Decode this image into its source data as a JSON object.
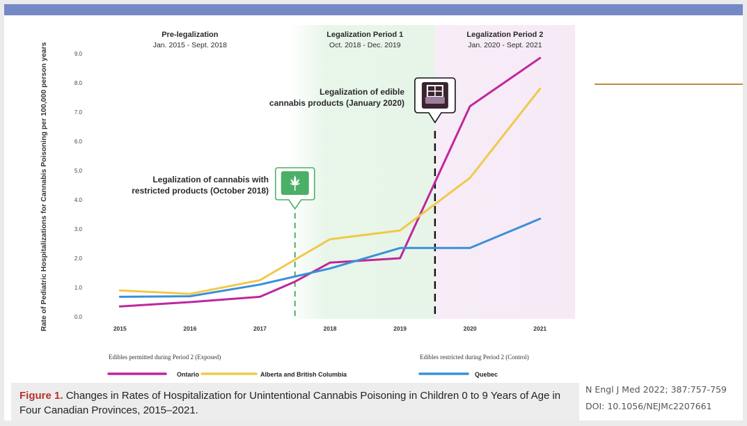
{
  "colors": {
    "ontario": "#c0269c",
    "alberta_bc": "#f0c94a",
    "quebec": "#3a8fd9",
    "period1_bg": "#e9f7ea",
    "period2_bg": "#f6ebf6",
    "green_marker": "#4caf66",
    "dark_marker": "#3a2430"
  },
  "icons": {
    "leaf": "cannabis-leaf-icon",
    "edible": "edible-package-icon"
  },
  "chart_data": {
    "type": "line",
    "ylabel": "Rate of Pediatric Hospitalizations for Cannabis Poisoning per 100,000 person years",
    "xlabel": "",
    "ylim": [
      0,
      9
    ],
    "yticks": [
      "0.0",
      "1.0",
      "2.0",
      "3.0",
      "4.0",
      "5.0",
      "6.0",
      "7.0",
      "8.0",
      "9.0"
    ],
    "x": [
      2015,
      2016,
      2017,
      2018,
      2019,
      2020,
      2021
    ],
    "xtick_labels": [
      "2015",
      "2016",
      "2017",
      "2018",
      "2019",
      "2020",
      "2021"
    ],
    "grid": false,
    "series": [
      {
        "name": "Ontario",
        "key": "ontario",
        "points": [
          [
            2015,
            0.35
          ],
          [
            2016,
            0.5
          ],
          [
            2017,
            0.68
          ],
          [
            2017.5,
            1.2
          ],
          [
            2018,
            1.85
          ],
          [
            2019,
            2.0
          ],
          [
            2020,
            7.2
          ],
          [
            2021,
            8.85
          ]
        ]
      },
      {
        "name": "Alberta and British Columbia",
        "key": "alberta_bc",
        "points": [
          [
            2015,
            0.9
          ],
          [
            2016,
            0.78
          ],
          [
            2017,
            1.25
          ],
          [
            2017.5,
            1.95
          ],
          [
            2018,
            2.65
          ],
          [
            2019,
            2.95
          ],
          [
            2020,
            4.75
          ],
          [
            2021,
            7.8
          ]
        ]
      },
      {
        "name": "Quebec",
        "key": "quebec",
        "points": [
          [
            2015,
            0.68
          ],
          [
            2016,
            0.7
          ],
          [
            2017,
            1.1
          ],
          [
            2018,
            1.65
          ],
          [
            2019,
            2.35
          ],
          [
            2020,
            2.35
          ],
          [
            2021,
            3.35
          ]
        ]
      }
    ],
    "periods": [
      {
        "name": "Pre-legalization",
        "dates": "Jan. 2015 - Sept. 2018",
        "start": 2014.5,
        "end": 2017.5
      },
      {
        "name": "Legalization Period 1",
        "dates": "Oct. 2018 - Dec. 2019",
        "start": 2017.5,
        "end": 2019.5
      },
      {
        "name": "Legalization Period 2",
        "dates": "Jan. 2020 - Sept. 2021",
        "start": 2019.5,
        "end": 2021.5
      }
    ],
    "events": [
      {
        "x": 2017.5,
        "text_lines": [
          "Legalization of cannabis with",
          "restricted products (October 2018)"
        ],
        "icon": "cannabis-leaf-icon"
      },
      {
        "x": 2019.5,
        "text_lines": [
          "Legalization of edible",
          "cannabis products (January 2020)"
        ],
        "icon": "edible-package-icon"
      }
    ],
    "legend": {
      "placement": "bottom",
      "group_exposed": "Edibles permitted during Period 2 (Exposed)",
      "group_control": "Edibles restricted during Period 2 (Control)"
    }
  },
  "caption": {
    "label": "Figure 1.",
    "title": "Changes in Rates of Hospitalization for Unintentional Cannabis Poisoning in Children 0 to 9 Years of Age in Four Canadian Provinces, 2015–2021."
  },
  "citation": {
    "journal": "N Engl J Med 2022; 387:757-759",
    "doi": "DOI: 10.1056/NEJMc2207661"
  }
}
